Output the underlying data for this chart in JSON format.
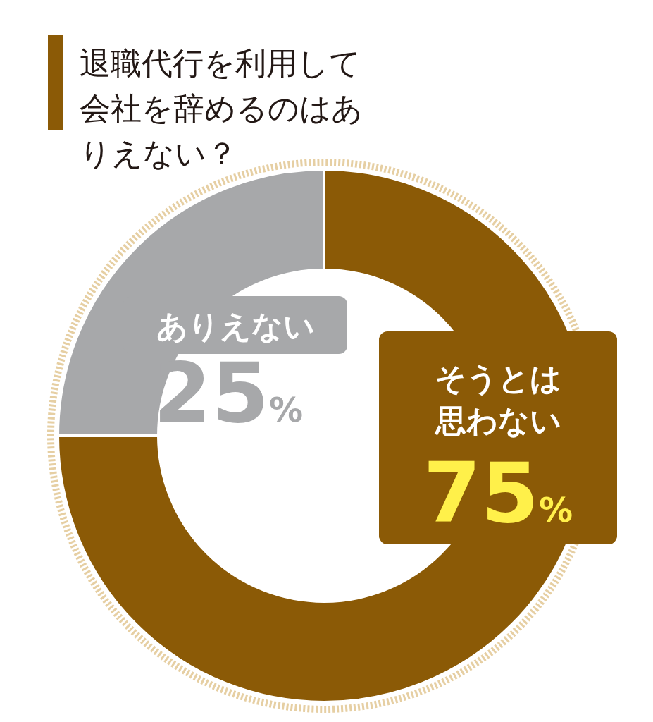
{
  "chart_data": {
    "type": "donut",
    "title": "退職代行を利用して会社を辞めるのはありえない？",
    "categories": [
      "そうとは思わない",
      "ありえない"
    ],
    "values": [
      75,
      25
    ],
    "colors": [
      "#8b5a06",
      "#a7a8aa"
    ],
    "value_labels": [
      "75%",
      "25%"
    ]
  }
}
